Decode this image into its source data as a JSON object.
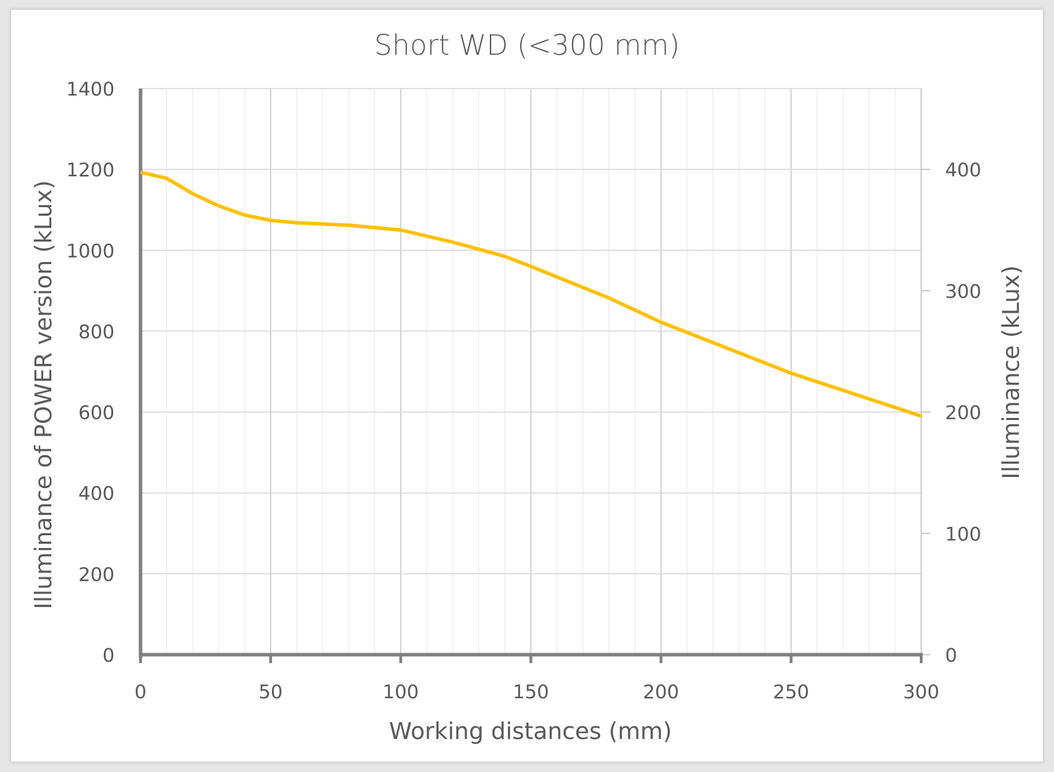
{
  "chart_data": {
    "type": "line",
    "title": "Short WD (<300 mm)",
    "xlabel": "Working distances (mm)",
    "ylabel": "Illuminance of POWER version (kLux)",
    "y2label": "Illuminance (kLux)",
    "xlim": [
      0,
      300
    ],
    "ylim": [
      0,
      1400
    ],
    "y2lim": [
      0,
      466.7
    ],
    "x_ticks": [
      0,
      50,
      100,
      150,
      200,
      250,
      300
    ],
    "y_ticks": [
      0,
      200,
      400,
      600,
      800,
      1000,
      1200,
      1400
    ],
    "y2_ticks": [
      0,
      100,
      200,
      300,
      400
    ],
    "grid": true,
    "legend": "none",
    "series": [
      {
        "name": "POWER version",
        "axis": "left",
        "color": "#FFC000",
        "x": [
          0,
          10,
          20,
          30,
          40,
          50,
          60,
          80,
          100,
          120,
          140,
          150,
          180,
          200,
          250,
          300
        ],
        "values": [
          1193,
          1178,
          1140,
          1110,
          1087,
          1074,
          1068,
          1062,
          1050,
          1020,
          985,
          960,
          882,
          822,
          696,
          590
        ]
      }
    ]
  }
}
